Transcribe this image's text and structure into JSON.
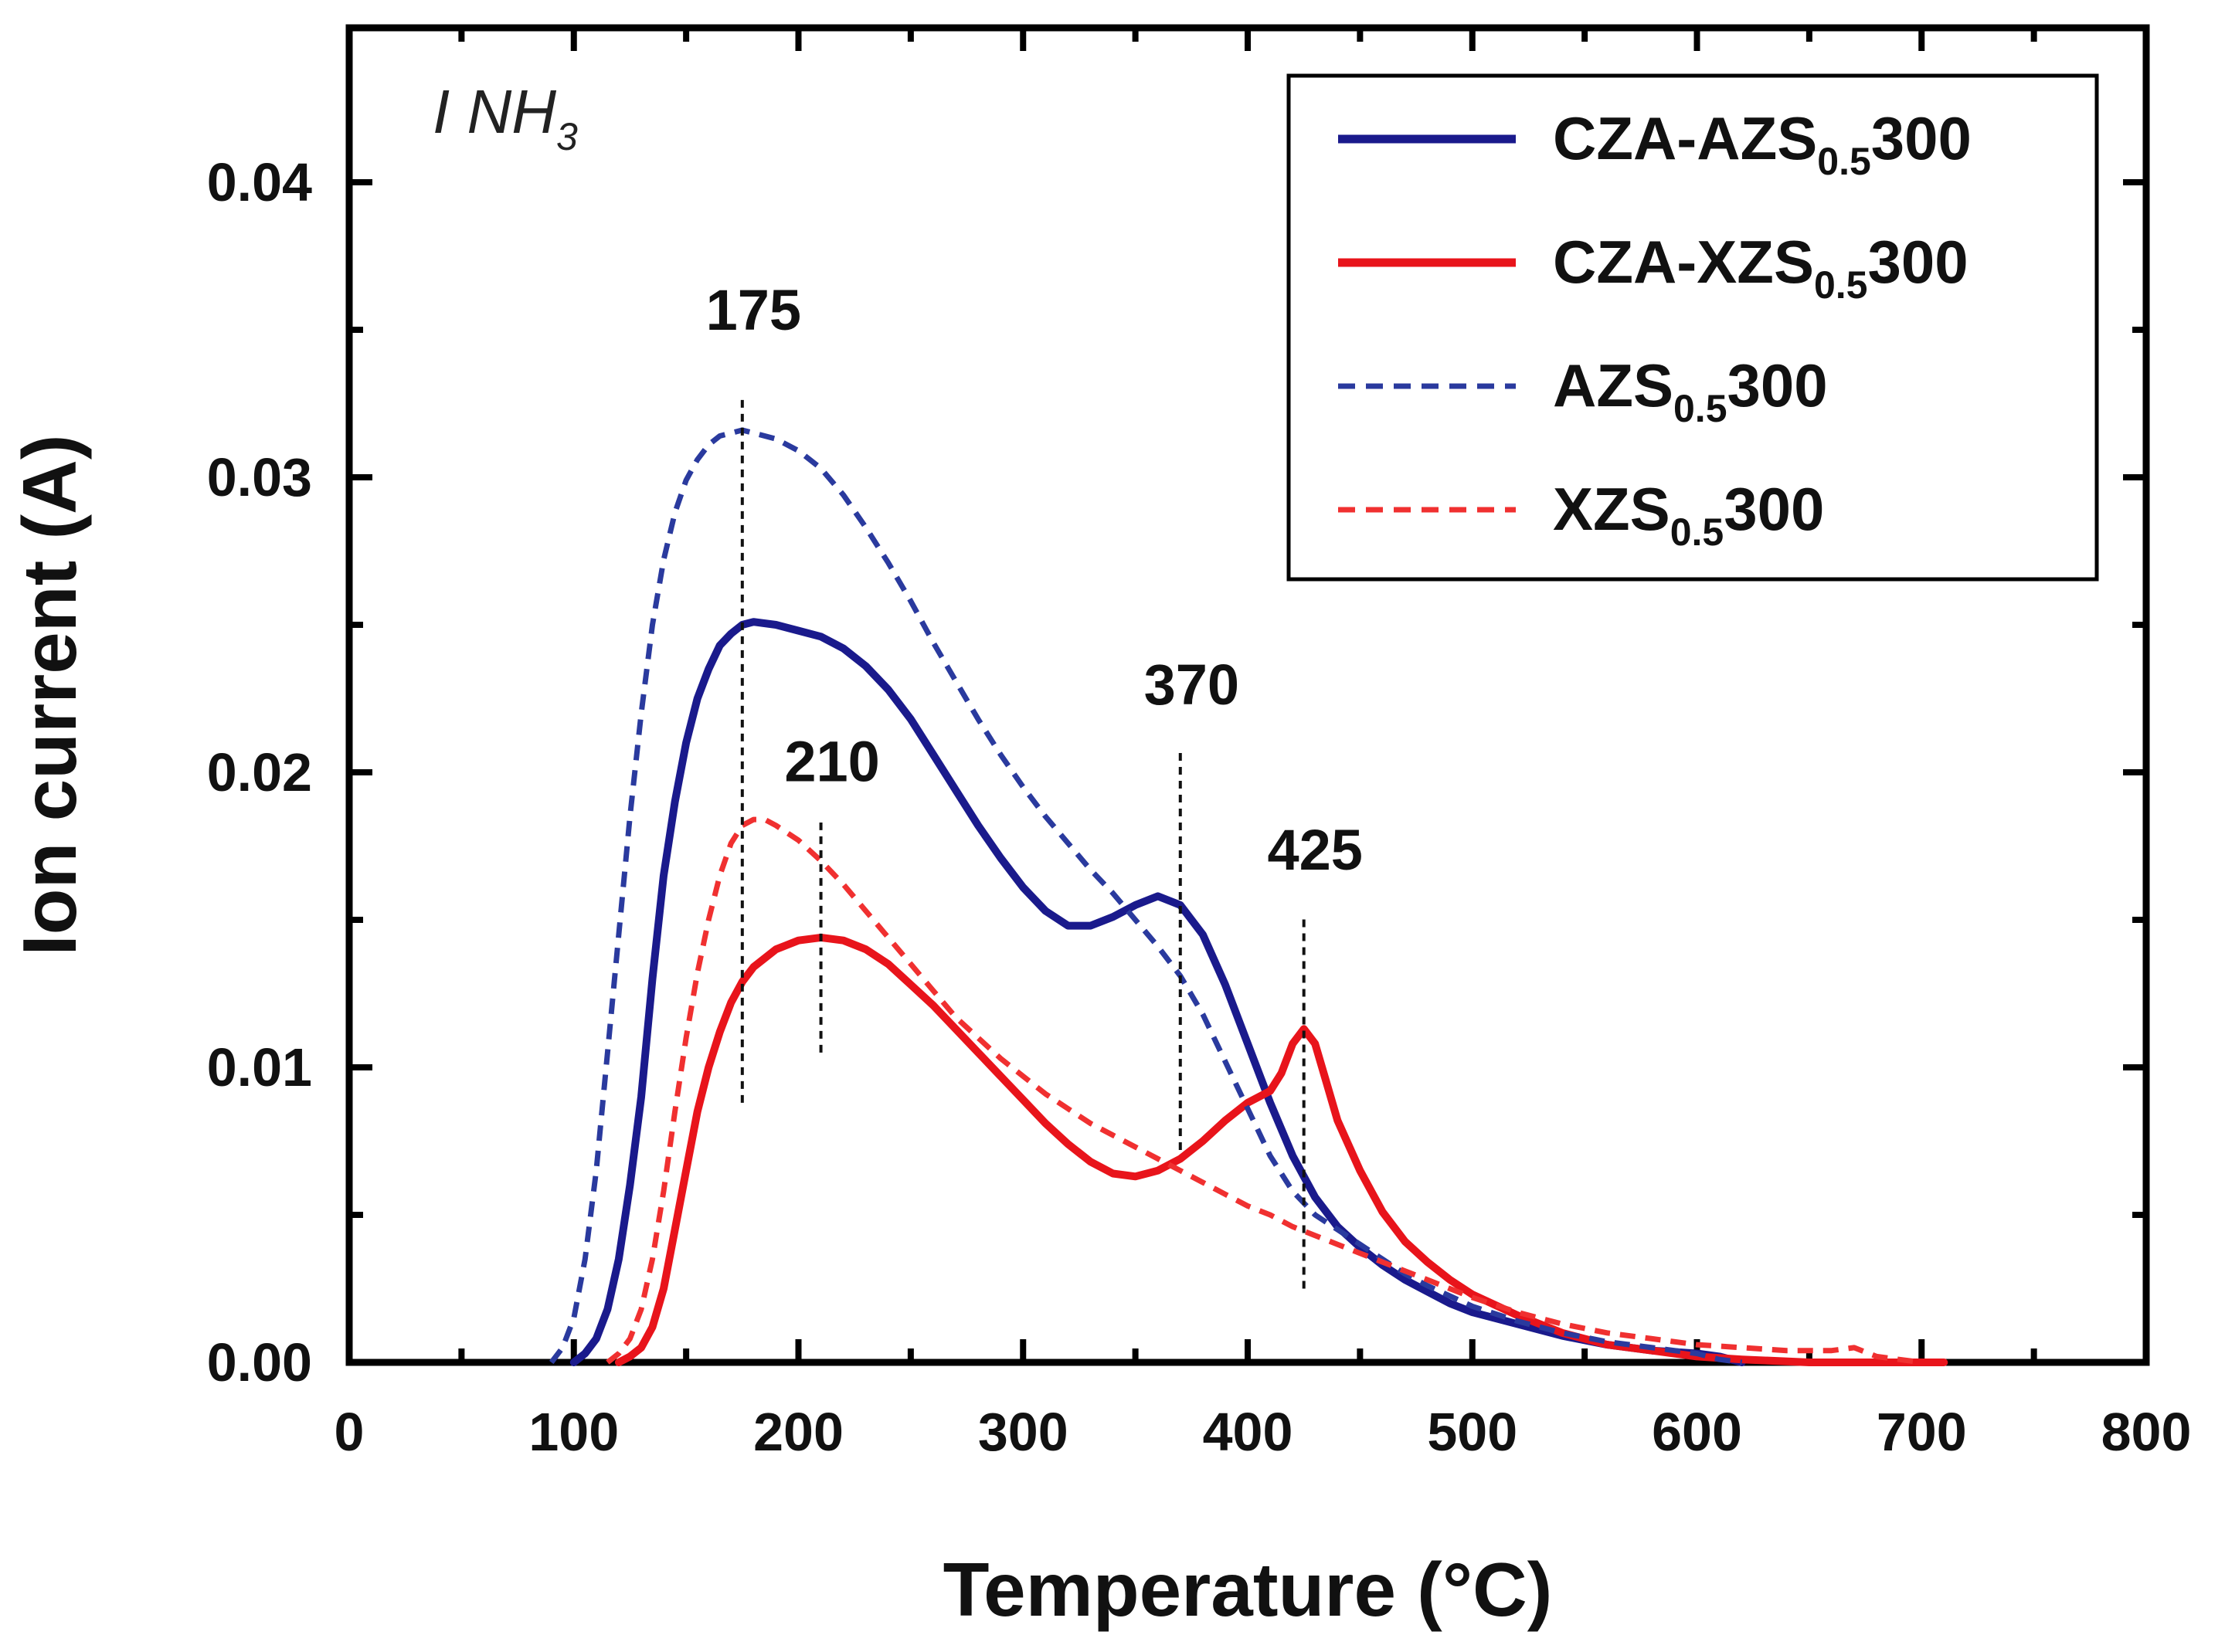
{
  "chart_data": {
    "type": "line",
    "panel_label": "I NH",
    "panel_label_sub": "3",
    "xlabel": "Temperature (°C)",
    "ylabel": "Ion current (A)",
    "xlim": [
      0,
      800
    ],
    "ylim": [
      0,
      0.045
    ],
    "x_ticks": [
      0,
      100,
      200,
      300,
      400,
      500,
      600,
      700,
      800
    ],
    "x_tick_labels": [
      "0",
      "100",
      "200",
      "300",
      "400",
      "500",
      "600",
      "700",
      "800"
    ],
    "y_ticks": [
      0.0,
      0.01,
      0.02,
      0.03,
      0.04
    ],
    "y_tick_labels": [
      "0.00",
      "0.01",
      "0.02",
      "0.03",
      "0.04"
    ],
    "series": [
      {
        "name": "CZA-AZS300",
        "legend_main": "CZA-AZS",
        "legend_sub": "0.5",
        "legend_tail": "300",
        "color": "#1a1a8c",
        "style": "solid",
        "x": [
          100,
          105,
          110,
          115,
          120,
          125,
          130,
          135,
          140,
          145,
          150,
          155,
          160,
          165,
          170,
          175,
          180,
          190,
          200,
          210,
          220,
          230,
          240,
          250,
          260,
          270,
          280,
          290,
          300,
          310,
          320,
          330,
          340,
          350,
          360,
          370,
          380,
          390,
          400,
          410,
          420,
          430,
          440,
          450,
          460,
          470,
          480,
          490,
          500,
          520,
          540,
          560,
          580,
          600,
          610,
          620
        ],
        "y": [
          0.0,
          0.0003,
          0.0008,
          0.0018,
          0.0035,
          0.006,
          0.009,
          0.013,
          0.0165,
          0.019,
          0.021,
          0.0225,
          0.0235,
          0.0243,
          0.0247,
          0.025,
          0.0251,
          0.025,
          0.0248,
          0.0246,
          0.0242,
          0.0236,
          0.0228,
          0.0218,
          0.0206,
          0.0194,
          0.0182,
          0.0171,
          0.0161,
          0.0153,
          0.0148,
          0.0148,
          0.0151,
          0.0155,
          0.0158,
          0.0155,
          0.0145,
          0.0128,
          0.0108,
          0.0088,
          0.007,
          0.0056,
          0.0046,
          0.0039,
          0.0033,
          0.0028,
          0.0024,
          0.002,
          0.0017,
          0.0013,
          0.0009,
          0.0006,
          0.0004,
          0.0003,
          0.0002,
          0.0
        ]
      },
      {
        "name": "CZA-XZS300",
        "legend_main": "CZA-XZS",
        "legend_sub": "0.5",
        "legend_tail": "300",
        "color": "#e8141b",
        "style": "solid",
        "x": [
          120,
          125,
          130,
          135,
          140,
          145,
          150,
          155,
          160,
          165,
          170,
          175,
          180,
          190,
          200,
          210,
          220,
          230,
          240,
          250,
          260,
          270,
          280,
          290,
          300,
          310,
          320,
          330,
          340,
          350,
          360,
          370,
          380,
          390,
          400,
          410,
          415,
          420,
          425,
          430,
          435,
          440,
          450,
          460,
          470,
          480,
          490,
          500,
          520,
          540,
          560,
          580,
          600,
          620,
          650,
          680,
          710
        ],
        "y": [
          0.0,
          0.0002,
          0.0005,
          0.0012,
          0.0025,
          0.0045,
          0.0065,
          0.0085,
          0.01,
          0.0112,
          0.0122,
          0.0129,
          0.0134,
          0.014,
          0.0143,
          0.0144,
          0.0143,
          0.014,
          0.0135,
          0.0128,
          0.0121,
          0.0113,
          0.0105,
          0.0097,
          0.0089,
          0.0081,
          0.0074,
          0.0068,
          0.0064,
          0.0063,
          0.0065,
          0.0069,
          0.0075,
          0.0082,
          0.0088,
          0.0092,
          0.0098,
          0.0108,
          0.0113,
          0.0108,
          0.0095,
          0.0082,
          0.0065,
          0.0051,
          0.0041,
          0.0034,
          0.0028,
          0.0023,
          0.0016,
          0.001,
          0.0006,
          0.0004,
          0.0002,
          0.0001,
          0.0,
          0.0,
          0.0
        ]
      },
      {
        "name": "AZS300",
        "legend_main": "AZS",
        "legend_sub": "0.5",
        "legend_tail": "300",
        "color": "#2a3a9e",
        "style": "dashed",
        "x": [
          90,
          95,
          100,
          105,
          110,
          115,
          120,
          125,
          130,
          135,
          140,
          145,
          150,
          155,
          160,
          165,
          170,
          175,
          180,
          190,
          200,
          210,
          220,
          230,
          240,
          250,
          260,
          270,
          280,
          290,
          300,
          310,
          320,
          330,
          340,
          350,
          360,
          370,
          380,
          390,
          400,
          410,
          420,
          430,
          440,
          450,
          460,
          470,
          480,
          500,
          520,
          540,
          560,
          580,
          600,
          610,
          620
        ],
        "y": [
          0.0,
          0.0005,
          0.0015,
          0.0035,
          0.0065,
          0.0105,
          0.0145,
          0.0185,
          0.022,
          0.025,
          0.0272,
          0.0288,
          0.0299,
          0.0306,
          0.0311,
          0.0314,
          0.0315,
          0.0316,
          0.0315,
          0.0313,
          0.0309,
          0.0303,
          0.0294,
          0.0283,
          0.0271,
          0.0258,
          0.0244,
          0.0231,
          0.0218,
          0.0206,
          0.0195,
          0.0185,
          0.0176,
          0.0167,
          0.0159,
          0.015,
          0.0141,
          0.0131,
          0.0118,
          0.0102,
          0.0086,
          0.007,
          0.0058,
          0.005,
          0.0045,
          0.004,
          0.0035,
          0.003,
          0.0026,
          0.0019,
          0.0014,
          0.001,
          0.0007,
          0.0005,
          0.0003,
          0.0001,
          0.0
        ]
      },
      {
        "name": "XZS300",
        "legend_main": "XZS",
        "legend_sub": "0.5",
        "legend_tail": "300",
        "color": "#f03030",
        "style": "dashed",
        "x": [
          115,
          120,
          125,
          130,
          135,
          140,
          145,
          150,
          155,
          160,
          165,
          170,
          175,
          180,
          185,
          190,
          200,
          210,
          220,
          230,
          240,
          250,
          260,
          270,
          280,
          290,
          300,
          310,
          320,
          330,
          340,
          350,
          360,
          370,
          380,
          390,
          400,
          410,
          420,
          430,
          440,
          450,
          460,
          470,
          480,
          500,
          520,
          540,
          560,
          580,
          600,
          620,
          640,
          660,
          670,
          680,
          700
        ],
        "y": [
          0.0,
          0.0003,
          0.0008,
          0.0018,
          0.0035,
          0.0058,
          0.0085,
          0.011,
          0.0132,
          0.015,
          0.0165,
          0.0176,
          0.0182,
          0.0184,
          0.0184,
          0.0182,
          0.0177,
          0.017,
          0.0162,
          0.0153,
          0.0144,
          0.0135,
          0.0126,
          0.0117,
          0.011,
          0.0103,
          0.0097,
          0.0091,
          0.0086,
          0.0081,
          0.0077,
          0.0073,
          0.0069,
          0.0065,
          0.0061,
          0.0057,
          0.0053,
          0.005,
          0.0046,
          0.0043,
          0.004,
          0.0037,
          0.0034,
          0.0031,
          0.0028,
          0.0022,
          0.0017,
          0.0013,
          0.001,
          0.0008,
          0.0006,
          0.0005,
          0.0004,
          0.0004,
          0.0005,
          0.0002,
          0.0
        ]
      }
    ],
    "annotations": [
      {
        "text": "175",
        "x": 175,
        "y_from": 0.0088,
        "y_to": 0.0328,
        "label_x": 180,
        "label_y": 0.035
      },
      {
        "text": "210",
        "x": 210,
        "y_from": 0.0105,
        "y_to": 0.0183,
        "label_x": 215,
        "label_y": 0.0197
      },
      {
        "text": "370",
        "x": 370,
        "y_from": 0.0072,
        "y_to": 0.0208,
        "label_x": 375,
        "label_y": 0.0223
      },
      {
        "text": "425",
        "x": 425,
        "y_from": 0.0025,
        "y_to": 0.0152,
        "label_x": 430,
        "label_y": 0.0167
      }
    ]
  }
}
